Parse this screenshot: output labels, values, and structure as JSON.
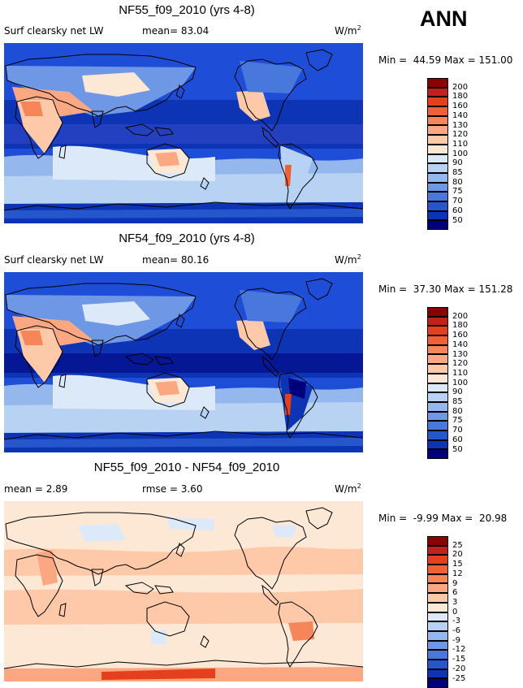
{
  "season": "ANN",
  "units_base": "W/m",
  "units_exp": "2",
  "panels": [
    {
      "title": "NF55_f09_2010 (yrs 4-8)",
      "label_left": "Surf clearsky net LW",
      "label_mid": "mean=  83.04",
      "minmax": "Min =  44.59 Max = 151.00",
      "colorbar": {
        "ticks": [
          "200",
          "180",
          "160",
          "140",
          "130",
          "120",
          "110",
          "100",
          "90",
          "85",
          "80",
          "75",
          "70",
          "60",
          "50"
        ],
        "colors": [
          "#8b0000",
          "#c4201a",
          "#e4401e",
          "#f06236",
          "#f7855a",
          "#fba882",
          "#fdc9a8",
          "#fde8d6",
          "#dce9f8",
          "#b8d2f4",
          "#94b8ee",
          "#6e98e6",
          "#4878dc",
          "#2656cc",
          "#0c34b4",
          "#00007c"
        ]
      }
    },
    {
      "title": "NF54_f09_2010 (yrs 4-8)",
      "label_left": "Surf clearsky net LW",
      "label_mid": "mean=  80.16",
      "minmax": "Min =  37.30 Max = 151.28",
      "colorbar": {
        "ticks": [
          "200",
          "180",
          "160",
          "140",
          "130",
          "120",
          "110",
          "100",
          "90",
          "85",
          "80",
          "75",
          "70",
          "60",
          "50"
        ],
        "colors": [
          "#8b0000",
          "#c4201a",
          "#e4401e",
          "#f06236",
          "#f7855a",
          "#fba882",
          "#fdc9a8",
          "#fde8d6",
          "#dce9f8",
          "#b8d2f4",
          "#94b8ee",
          "#6e98e6",
          "#4878dc",
          "#2656cc",
          "#0c34b4",
          "#00007c"
        ]
      }
    },
    {
      "title": "NF55_f09_2010 - NF54_f09_2010",
      "label_left": "mean =   2.89",
      "label_mid": "rmse =   3.60",
      "minmax": "Min =  -9.99 Max =  20.98",
      "colorbar": {
        "ticks": [
          "25",
          "20",
          "15",
          "12",
          "9",
          "6",
          "3",
          "0",
          "-3",
          "-6",
          "-9",
          "-12",
          "-15",
          "-20",
          "-25"
        ],
        "colors": [
          "#8b0000",
          "#c4201a",
          "#e4401e",
          "#f06236",
          "#f7855a",
          "#fba882",
          "#fdc9a8",
          "#fde8d6",
          "#dce9f8",
          "#b8d2f4",
          "#94b8ee",
          "#6e98e6",
          "#4878dc",
          "#2656cc",
          "#0c34b4",
          "#00007c"
        ]
      }
    }
  ]
}
